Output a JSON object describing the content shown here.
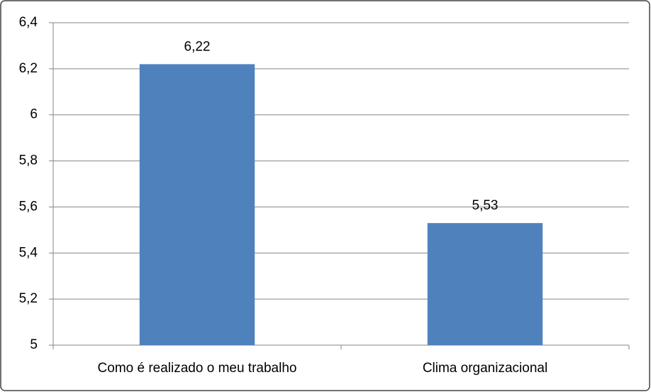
{
  "chart_data": {
    "type": "bar",
    "categories": [
      "Como é realizado o meu trabalho",
      "Clima organizacional"
    ],
    "values": [
      6.22,
      5.53
    ],
    "value_labels": [
      "6,22",
      "5,53"
    ],
    "color": "#4f81bd",
    "ylim": [
      5,
      6.4
    ],
    "yticks": [
      5,
      {
        "value": 5.2,
        "label": "5,2"
      },
      {
        "value": 5.4,
        "label": "5,4"
      },
      {
        "value": 5.6,
        "label": "5,6"
      },
      {
        "value": 5.8,
        "label": "5,8"
      },
      6,
      {
        "value": 6.2,
        "label": "6,2"
      },
      {
        "value": 6.4,
        "label": "6,4"
      }
    ],
    "grid": true
  }
}
